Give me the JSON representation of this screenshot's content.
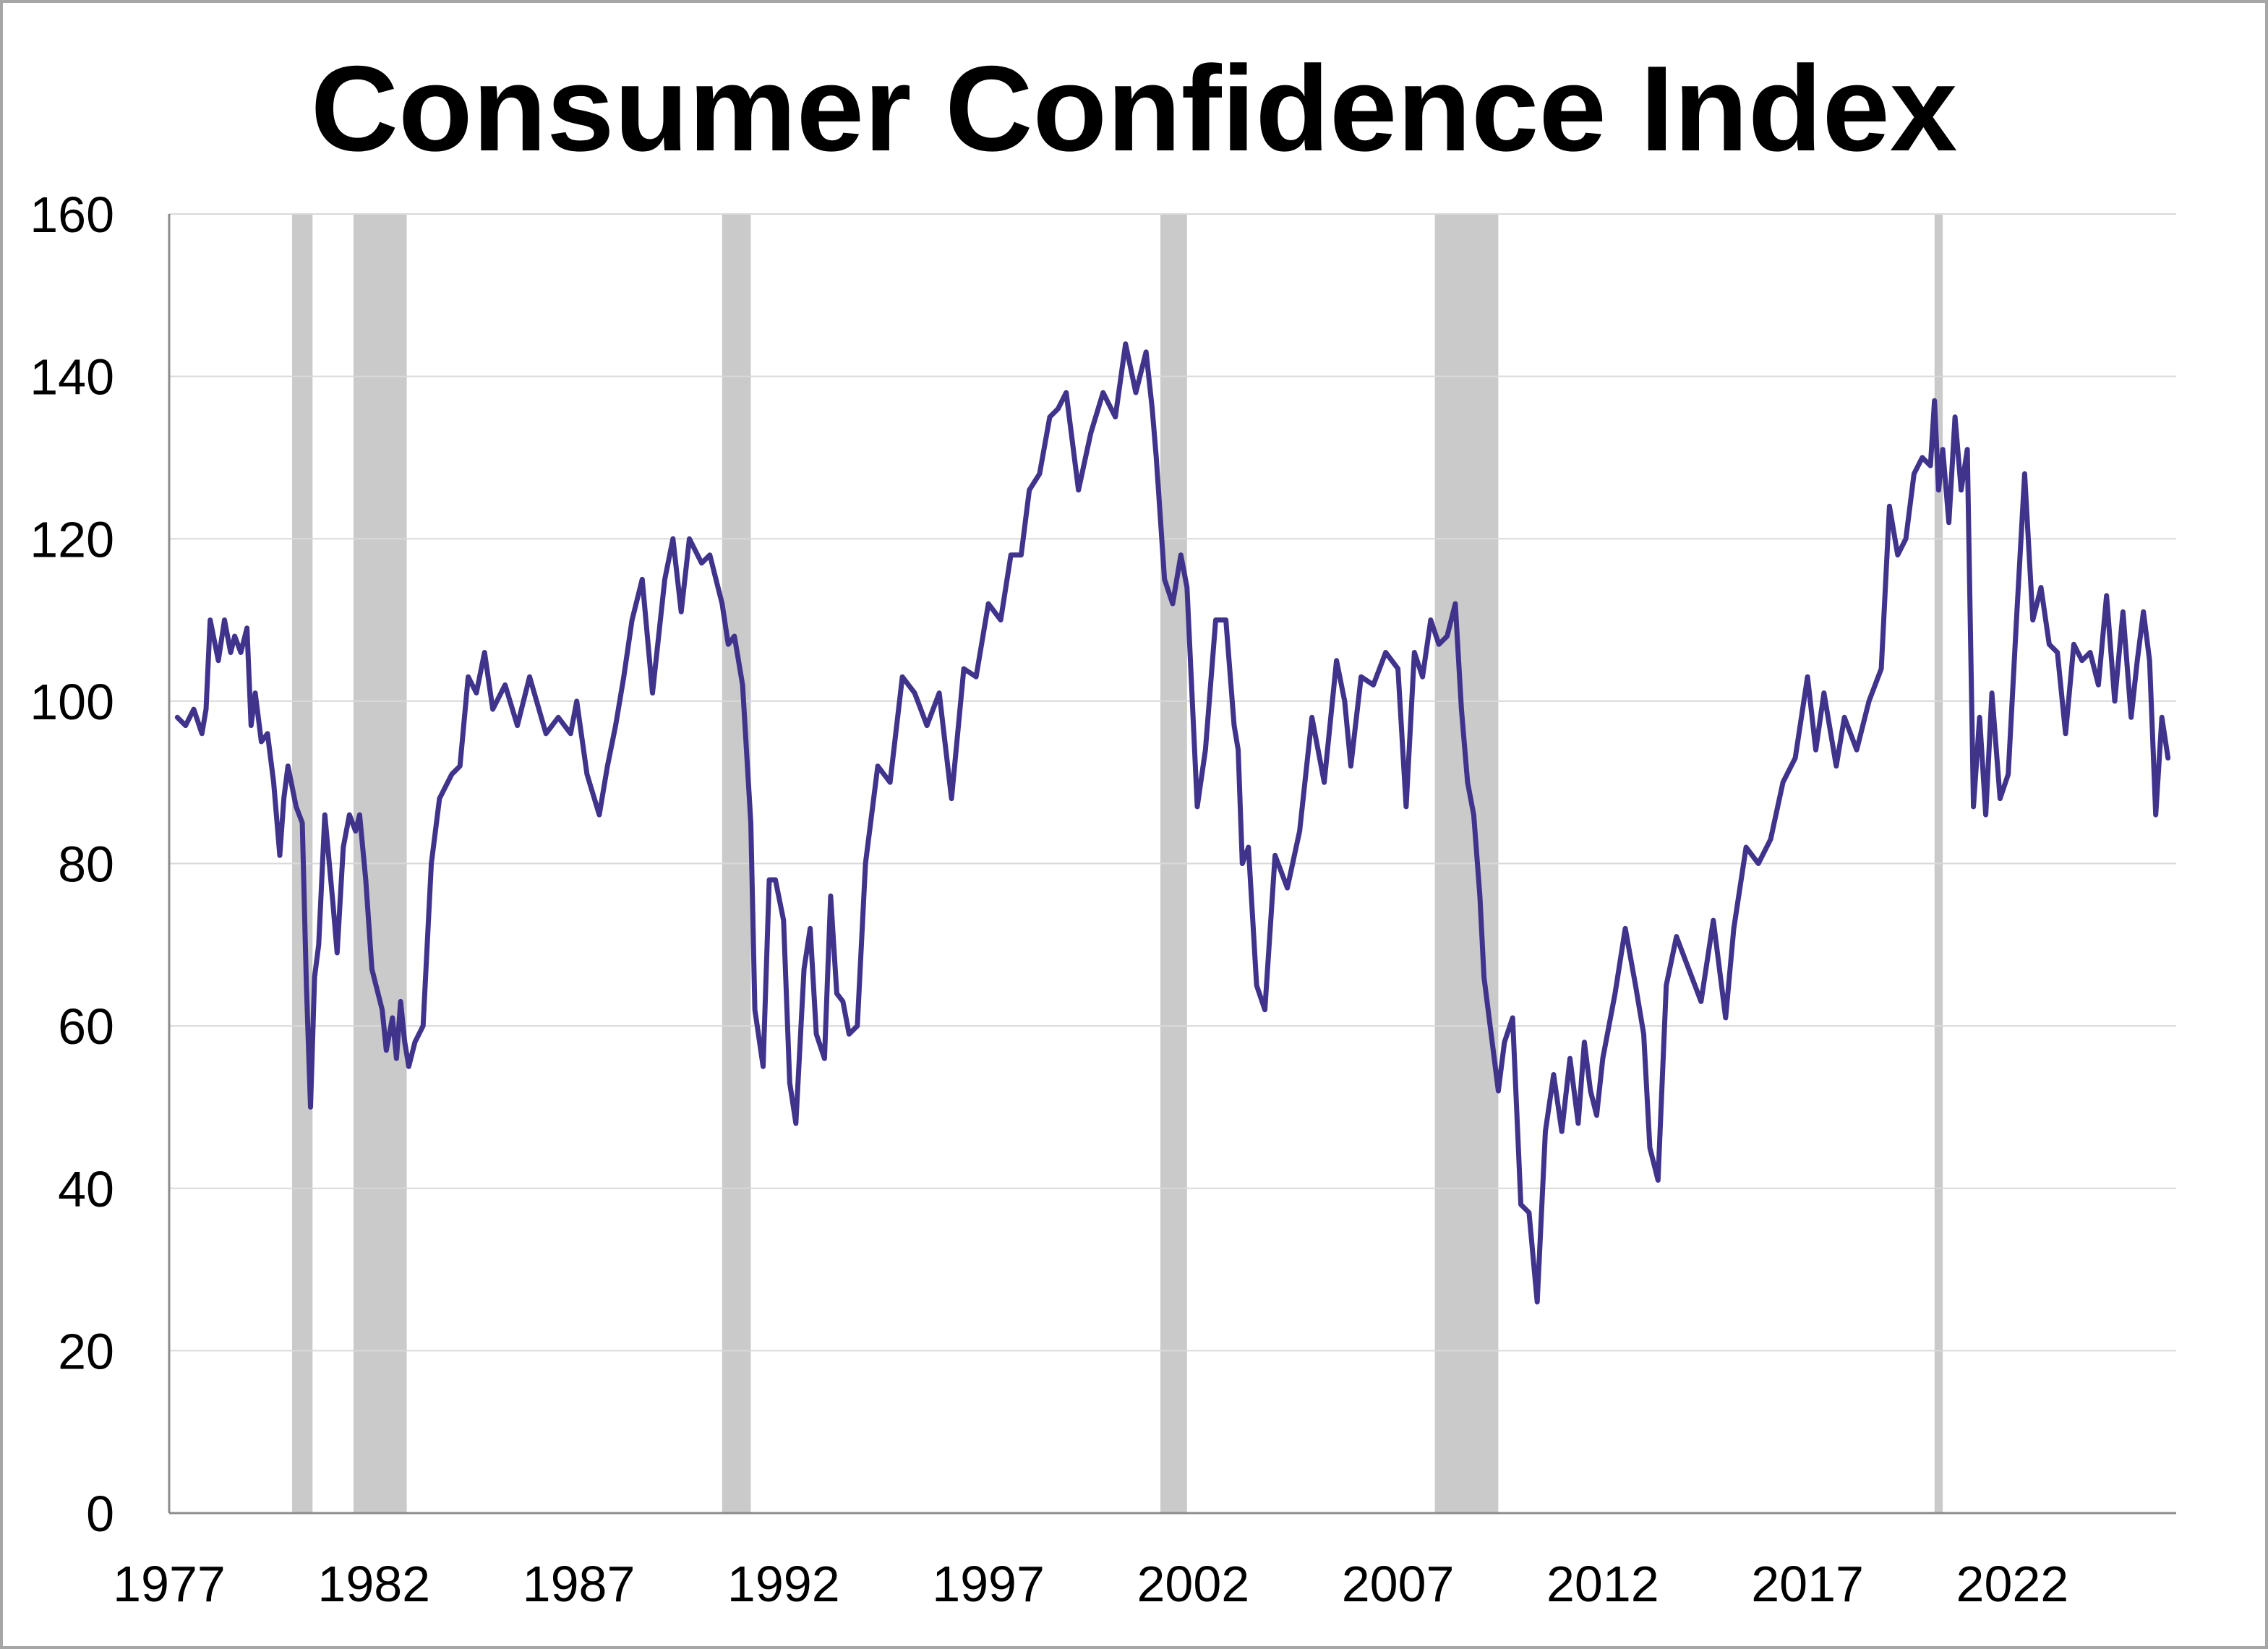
{
  "chart_data": {
    "type": "line",
    "title": "Consumer Confidence Index",
    "xlabel": "",
    "ylabel": "",
    "ylim": [
      0,
      160
    ],
    "xlim": [
      1977,
      2026
    ],
    "grid": "horizontal",
    "x_ticks": [
      "1977",
      "1982",
      "1987",
      "1992",
      "1997",
      "2002",
      "2007",
      "2012",
      "2017",
      "2022"
    ],
    "y_ticks": [
      "0",
      "20",
      "40",
      "60",
      "80",
      "100",
      "120",
      "140",
      "160"
    ],
    "colors": {
      "line": "#40338c",
      "recession": "#cacaca",
      "grid": "#d9d9d9",
      "axis": "#8c8c8c"
    },
    "recessions": [
      [
        1980.0,
        1980.5
      ],
      [
        1981.5,
        1982.8
      ],
      [
        1990.5,
        1991.2
      ],
      [
        2001.2,
        2001.85
      ],
      [
        2007.9,
        2009.45
      ],
      [
        2020.1,
        2020.3
      ]
    ],
    "series": [
      {
        "x": [
          1977.2,
          1977.4,
          1977.6,
          1977.8,
          1977.9,
          1978.0,
          1978.2,
          1978.35,
          1978.5,
          1978.6,
          1978.75,
          1978.9,
          1979.0,
          1979.1,
          1979.25,
          1979.4,
          1979.55,
          1979.7,
          1979.8,
          1979.9,
          1980.1,
          1980.25,
          1980.35,
          1980.45,
          1980.55,
          1980.65,
          1980.8,
          1981.0,
          1981.1,
          1981.25,
          1981.4,
          1981.55,
          1981.65,
          1981.8,
          1981.95,
          1982.1,
          1982.2,
          1982.3,
          1982.45,
          1982.55,
          1982.65,
          1982.75,
          1982.85,
          1983.0,
          1983.2,
          1983.4,
          1983.6,
          1983.9,
          1984.1,
          1984.3,
          1984.5,
          1984.7,
          1984.9,
          1985.2,
          1985.5,
          1985.8,
          1986.2,
          1986.5,
          1986.8,
          1986.95,
          1987.2,
          1987.5,
          1987.7,
          1987.9,
          1988.1,
          1988.3,
          1988.55,
          1988.8,
          1989.1,
          1989.3,
          1989.5,
          1989.7,
          1990.0,
          1990.2,
          1990.35,
          1990.5,
          1990.65,
          1990.8,
          1991.0,
          1991.2,
          1991.3,
          1991.5,
          1991.65,
          1991.8,
          1992.0,
          1992.15,
          1992.3,
          1992.5,
          1992.65,
          1992.8,
          1993.0,
          1993.15,
          1993.3,
          1993.45,
          1993.6,
          1993.8,
          1994.0,
          1994.3,
          1994.6,
          1994.9,
          1995.2,
          1995.5,
          1995.8,
          1996.1,
          1996.4,
          1996.7,
          1997.0,
          1997.3,
          1997.55,
          1997.8,
          1998.0,
          1998.25,
          1998.5,
          1998.7,
          1998.9,
          1999.2,
          1999.5,
          1999.8,
          2000.1,
          2000.35,
          2000.6,
          2000.85,
          2001.0,
          2001.1,
          2001.3,
          2001.5,
          2001.7,
          2001.85,
          2002.1,
          2002.3,
          2002.55,
          2002.8,
          2003.0,
          2003.1,
          2003.2,
          2003.35,
          2003.55,
          2003.75,
          2004.0,
          2004.3,
          2004.6,
          2004.9,
          2005.2,
          2005.5,
          2005.7,
          2005.85,
          2006.1,
          2006.4,
          2006.7,
          2007.0,
          2007.2,
          2007.4,
          2007.6,
          2007.8,
          2008.0,
          2008.2,
          2008.4,
          2008.55,
          2008.7,
          2008.85,
          2009.0,
          2009.1,
          2009.25,
          2009.45,
          2009.6,
          2009.8,
          2010.0,
          2010.2,
          2010.4,
          2010.6,
          2010.8,
          2011.0,
          2011.2,
          2011.4,
          2011.55,
          2011.7,
          2011.85,
          2012.0,
          2012.3,
          2012.55,
          2012.8,
          2013.0,
          2013.15,
          2013.35,
          2013.55,
          2013.8,
          2014.1,
          2014.4,
          2014.7,
          2015.0,
          2015.2,
          2015.5,
          2015.8,
          2016.1,
          2016.4,
          2016.7,
          2017.0,
          2017.2,
          2017.4,
          2017.7,
          2017.9,
          2018.2,
          2018.5,
          2018.8,
          2019.0,
          2019.2,
          2019.4,
          2019.6,
          2019.8,
          2020.0,
          2020.1,
          2020.2,
          2020.3,
          2020.45,
          2020.6,
          2020.75,
          2020.9,
          2021.05,
          2021.2,
          2021.35,
          2021.5,
          2021.7,
          2021.9,
          2022.1,
          2022.3,
          2022.5,
          2022.7,
          2022.9,
          2023.1,
          2023.3,
          2023.5,
          2023.7,
          2023.9,
          2024.1,
          2024.3,
          2024.5,
          2024.7,
          2024.9,
          2025.05,
          2025.2,
          2025.35,
          2025.5,
          2025.65,
          2025.8
        ],
        "values": [
          98,
          97,
          99,
          96,
          99,
          110,
          105,
          110,
          106,
          108,
          106,
          109,
          97,
          101,
          95,
          96,
          90,
          81,
          88,
          92,
          87,
          85,
          65,
          50,
          66,
          70,
          86,
          75,
          69,
          82,
          86,
          84,
          86,
          78,
          67,
          64,
          62,
          57,
          61,
          56,
          63,
          58,
          55,
          58,
          60,
          80,
          88,
          91,
          92,
          103,
          101,
          106,
          99,
          102,
          97,
          103,
          96,
          98,
          96,
          100,
          91,
          86,
          92,
          97,
          103,
          110,
          115,
          101,
          115,
          120,
          111,
          120,
          117,
          118,
          115,
          112,
          107,
          108,
          102,
          85,
          62,
          55,
          78,
          78,
          73,
          53,
          48,
          67,
          72,
          59,
          56,
          76,
          64,
          63,
          59,
          60,
          80,
          92,
          90,
          103,
          101,
          97,
          101,
          88,
          104,
          103,
          112,
          110,
          118,
          118,
          126,
          128,
          135,
          136,
          138,
          126,
          133,
          138,
          135,
          144,
          138,
          143,
          136,
          130,
          115,
          112,
          118,
          114,
          87,
          94,
          110,
          110,
          97,
          94,
          80,
          82,
          65,
          62,
          81,
          77,
          84,
          98,
          90,
          105,
          100,
          92,
          103,
          102,
          106,
          104,
          87,
          106,
          103,
          110,
          107,
          108,
          112,
          99,
          90,
          86,
          76,
          66,
          60,
          52,
          58,
          61,
          38,
          37,
          26,
          47,
          54,
          47,
          56,
          48,
          58,
          52,
          49,
          56,
          64,
          72,
          65,
          59,
          45,
          41,
          65,
          71,
          67,
          63,
          73,
          61,
          72,
          82,
          80,
          83,
          90,
          93,
          103,
          94,
          101,
          92,
          98,
          94,
          100,
          104,
          124,
          118,
          120,
          128,
          130,
          129,
          137,
          126,
          131,
          122,
          135,
          126,
          131,
          87,
          98,
          86,
          101,
          88,
          91,
          110,
          128,
          110,
          114,
          107,
          106,
          96,
          107,
          105,
          106,
          102,
          113,
          100,
          111,
          98,
          105,
          111,
          105,
          86,
          98,
          93
        ]
      }
    ]
  }
}
